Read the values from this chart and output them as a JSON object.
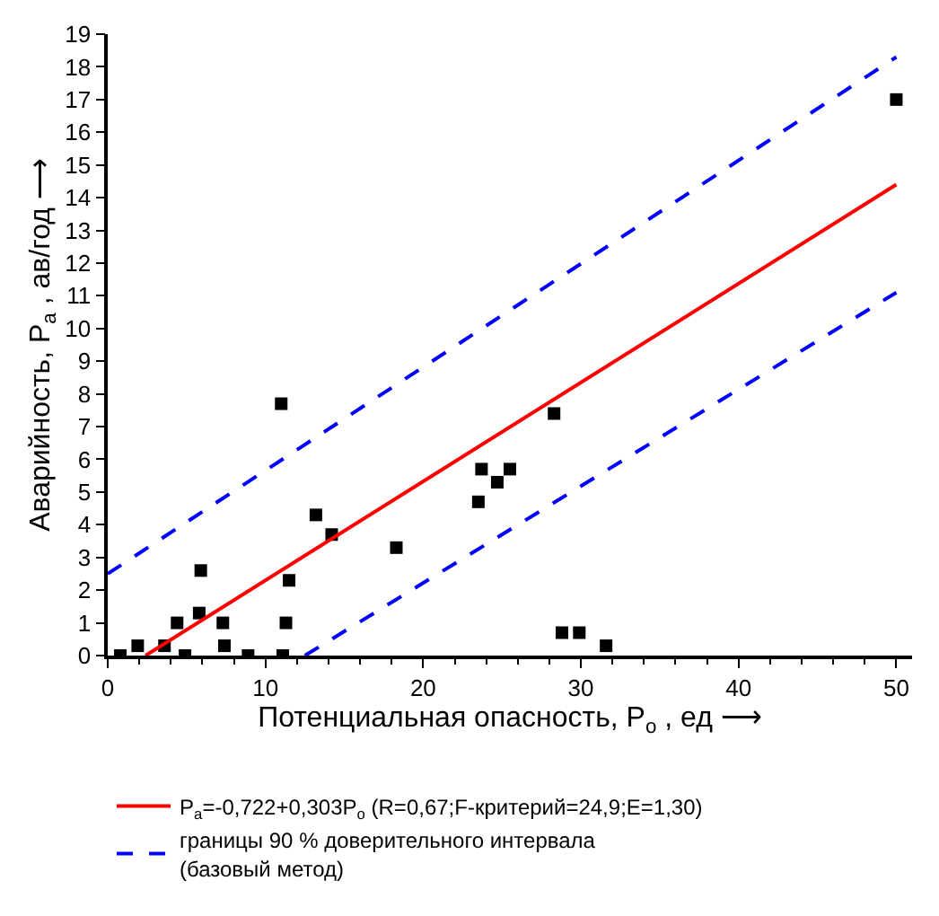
{
  "chart_data": {
    "type": "scatter",
    "xlabel": "Потенциальная опасность, P$_{о}$ , ед ⟶",
    "ylabel": "Аварийность, P$_{а}$ , ав/год ⟶",
    "xlim": [
      0,
      51
    ],
    "xticks": [
      0,
      10,
      20,
      30,
      40,
      50
    ],
    "ylim": [
      0,
      19
    ],
    "yticks": [
      0,
      1,
      2,
      3,
      4,
      5,
      6,
      7,
      8,
      9,
      10,
      11,
      12,
      13,
      14,
      15,
      16,
      17,
      18,
      19
    ],
    "legend": "bottom",
    "series": [
      {
        "marker": "square",
        "color": "#000000",
        "x": [
          0.8,
          1.9,
          3.6,
          4.4,
          4.9,
          5.9,
          5.8,
          7.3,
          7.4,
          8.9,
          11.0,
          13.2,
          14.2,
          11.5,
          11.3,
          11.1,
          18.3,
          23.5,
          23.7,
          24.7,
          25.5,
          28.3,
          28.8,
          29.9,
          31.6,
          50.0
        ],
        "values": [
          0,
          0.3,
          0.3,
          1.0,
          0,
          2.6,
          1.3,
          1.0,
          0.3,
          0,
          7.7,
          4.3,
          3.7,
          2.3,
          1.0,
          0,
          3.3,
          4.7,
          5.7,
          5.3,
          5.7,
          7.4,
          0.7,
          0.7,
          0.3,
          17.0
        ]
      },
      {
        "type": "line",
        "line_style": "solid",
        "color": "#ff0000",
        "name": "P$_{а}$=-0,722+0,303P$_{о}$ (R=0,67;F-критерий=24,9;E=1,30)",
        "x": [
          2.4,
          50
        ],
        "values": [
          0,
          14.4
        ]
      },
      {
        "type": "line",
        "line_style": "dashed",
        "color": "#0000ff",
        "name": "границы 90 % доверительного интервала\n(базовый метод)",
        "x": [
          0,
          50
        ],
        "values": [
          2.5,
          18.3
        ]
      },
      {
        "type": "line",
        "line_style": "dashed",
        "color": "#0000ff",
        "x": [
          12.5,
          50
        ],
        "values": [
          0,
          11.1
        ]
      }
    ]
  }
}
